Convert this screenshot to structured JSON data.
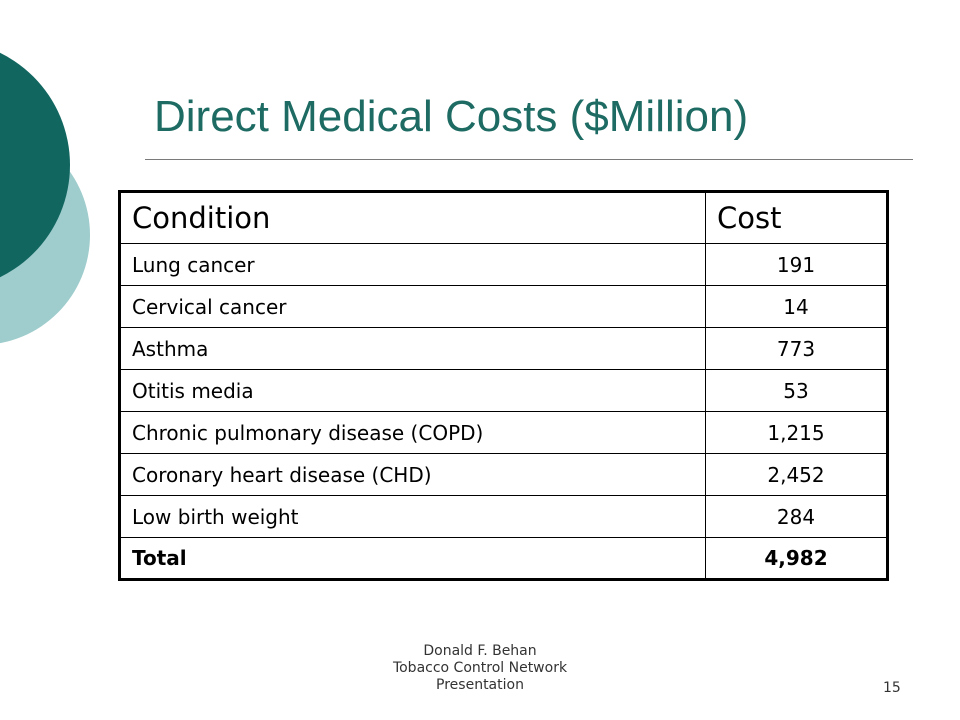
{
  "slide": {
    "title": "Direct Medical Costs ($Million)",
    "table": {
      "headers": [
        "Condition",
        "Cost"
      ],
      "rows": [
        {
          "condition": "Lung cancer",
          "cost": "191"
        },
        {
          "condition": "Cervical cancer",
          "cost": "14"
        },
        {
          "condition": "Asthma",
          "cost": "773"
        },
        {
          "condition": "Otitis media",
          "cost": "53"
        },
        {
          "condition": "Chronic pulmonary disease (COPD)",
          "cost": "1,215"
        },
        {
          "condition": "Coronary heart disease (CHD)",
          "cost": "2,452"
        },
        {
          "condition": "Low birth weight",
          "cost": "284"
        }
      ],
      "total": {
        "label": "Total",
        "cost": "4,982"
      }
    },
    "footer": {
      "lines": [
        "Donald F. Behan",
        "Tobacco Control Network",
        "Presentation"
      ]
    },
    "slide_number": "15"
  },
  "colors": {
    "title": "#1d6b63",
    "deco_dark": "#116660",
    "deco_light": "#9fcccc"
  }
}
